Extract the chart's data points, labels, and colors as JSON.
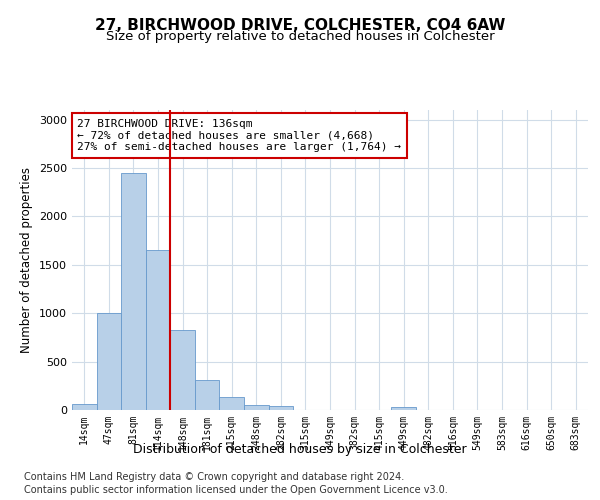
{
  "title": "27, BIRCHWOOD DRIVE, COLCHESTER, CO4 6AW",
  "subtitle": "Size of property relative to detached houses in Colchester",
  "xlabel": "Distribution of detached houses by size in Colchester",
  "ylabel": "Number of detached properties",
  "bar_labels": [
    "14sqm",
    "47sqm",
    "81sqm",
    "114sqm",
    "148sqm",
    "181sqm",
    "215sqm",
    "248sqm",
    "282sqm",
    "315sqm",
    "349sqm",
    "382sqm",
    "415sqm",
    "449sqm",
    "482sqm",
    "516sqm",
    "549sqm",
    "583sqm",
    "616sqm",
    "650sqm",
    "683sqm"
  ],
  "bar_values": [
    60,
    1000,
    2450,
    1650,
    830,
    310,
    130,
    55,
    45,
    0,
    0,
    0,
    0,
    30,
    0,
    0,
    0,
    0,
    0,
    0,
    0
  ],
  "bar_color": "#b8d0e8",
  "bar_edge_color": "#6699cc",
  "grid_color": "#d0dce8",
  "annotation_line1": "27 BIRCHWOOD DRIVE: 136sqm",
  "annotation_line2": "← 72% of detached houses are smaller (4,668)",
  "annotation_line3": "27% of semi-detached houses are larger (1,764) →",
  "annotation_box_color": "#ffffff",
  "annotation_box_edgecolor": "#cc0000",
  "vline_color": "#cc0000",
  "vline_x_index": 3,
  "ylim": [
    0,
    3100
  ],
  "footnote_line1": "Contains HM Land Registry data © Crown copyright and database right 2024.",
  "footnote_line2": "Contains public sector information licensed under the Open Government Licence v3.0.",
  "title_fontsize": 11,
  "subtitle_fontsize": 9.5,
  "tick_fontsize": 7,
  "ylabel_fontsize": 8.5,
  "xlabel_fontsize": 9,
  "annotation_fontsize": 8,
  "footnote_fontsize": 7
}
